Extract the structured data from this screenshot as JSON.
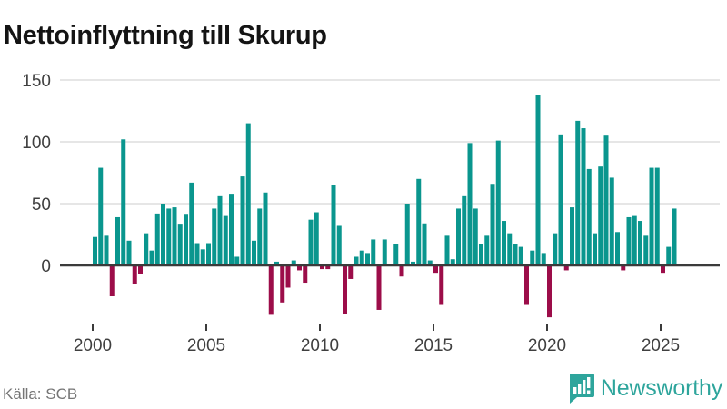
{
  "title": "Nettoinflyttning till Skurup",
  "footer": {
    "source": "Källa: SCB",
    "brand": "Newsworthy"
  },
  "chart_data": {
    "type": "bar",
    "title": "Nettoinflyttning till Skurup",
    "series_name": "Nettoinflyttning (personer per kvartal)",
    "frequency": "quarterly",
    "start_period": "2000 Q1",
    "end_period": "2025 Q3",
    "x_tick_labels": [
      "2000",
      "2005",
      "2010",
      "2015",
      "2020",
      "2025"
    ],
    "y_ticks": [
      0,
      50,
      100,
      150
    ],
    "ylim": [
      -50,
      150
    ],
    "grid": true,
    "colors": {
      "positive": "#0a968e",
      "negative": "#9c0d49",
      "axis": "#3b3b3b",
      "gridline": "#dddddd",
      "tick_text": "#3f3f3f"
    },
    "values": [
      23,
      79,
      24,
      -25,
      39,
      102,
      20,
      -15,
      -7,
      26,
      12,
      42,
      50,
      46,
      47,
      33,
      41,
      67,
      18,
      13,
      18,
      46,
      56,
      40,
      58,
      7,
      72,
      115,
      20,
      46,
      59,
      -40,
      3,
      -30,
      -18,
      4,
      -4,
      -14,
      37,
      43,
      -3,
      -3,
      65,
      32,
      -39,
      -11,
      7,
      12,
      10,
      21,
      -36,
      21,
      0,
      17,
      -9,
      50,
      3,
      70,
      34,
      4,
      -6,
      -32,
      24,
      5,
      46,
      56,
      99,
      46,
      17,
      24,
      66,
      101,
      36,
      26,
      17,
      15,
      -32,
      12,
      138,
      10,
      -42,
      26,
      106,
      -4,
      47,
      117,
      111,
      78,
      26,
      80,
      105,
      71,
      27,
      -4,
      39,
      40,
      36,
      24,
      79,
      79,
      -6,
      15,
      46
    ]
  }
}
